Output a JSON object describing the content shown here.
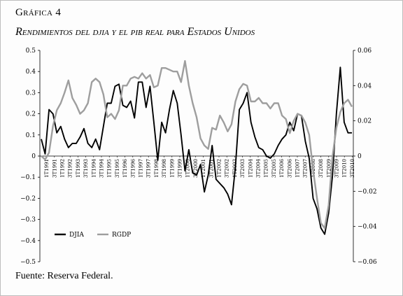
{
  "figure": {
    "heading": "Gráfica 4",
    "subtitle": "Rendimientos del djia y el pib real para Estados Unidos",
    "footer": "Fuente: Reserva Federal."
  },
  "chart_data": {
    "type": "line",
    "title": "Rendimientos del djia y el pib real para Estados Unidos",
    "xlabel": "",
    "ylabel": "",
    "y_left": {
      "min": -0.5,
      "max": 0.5,
      "ticks": [
        "0.5",
        "0.4",
        "0.3",
        "0.2",
        "0.1",
        "0",
        "−0.1",
        "−0.2",
        "−0.3",
        "−0.4",
        "−0.5"
      ]
    },
    "y_right": {
      "min": -0.06,
      "max": 0.06,
      "ticks": [
        "0.06",
        "0.04",
        "0.02",
        "0",
        "−0.02",
        "−0.04",
        "−0.06"
      ]
    },
    "x_tick_labels": [
      "1T1991",
      "3T1991",
      "1T1992",
      "3T1992",
      "1T1993",
      "3T1993",
      "1T1994",
      "3T1994",
      "1T1995",
      "3T1995",
      "1T1996",
      "3T1996",
      "1T1997",
      "3T1997",
      "1T1998",
      "3T1998",
      "1T1999",
      "3T1999",
      "1T2000",
      "3T2000",
      "1T2001",
      "3T2001",
      "1T2002",
      "3T2002",
      "1T2003",
      "3T2003",
      "1T2004",
      "3T2004",
      "1T2005",
      "3T2005",
      "1T2006",
      "3T2006",
      "1T2007",
      "3T2007",
      "1T2008",
      "3T2008",
      "1T2009",
      "3T2009",
      "1T2010",
      "3T2010"
    ],
    "legend_placement": "bottom-left",
    "grid": false,
    "series": [
      {
        "name": "DJIA",
        "color": "#000000",
        "axis": "left",
        "values": [
          0.08,
          0.01,
          0.22,
          0.2,
          0.11,
          0.14,
          0.08,
          0.04,
          0.06,
          0.06,
          0.09,
          0.13,
          0.06,
          0.04,
          0.08,
          0.03,
          0.14,
          0.25,
          0.25,
          0.33,
          0.34,
          0.24,
          0.23,
          0.26,
          0.18,
          0.35,
          0.35,
          0.23,
          0.33,
          0.16,
          -0.02,
          0.16,
          0.11,
          0.22,
          0.31,
          0.25,
          0.1,
          -0.07,
          0.03,
          -0.08,
          -0.09,
          -0.04,
          -0.17,
          -0.09,
          0.05,
          -0.11,
          -0.13,
          -0.15,
          -0.18,
          -0.23,
          -0.05,
          0.22,
          0.25,
          0.3,
          0.16,
          0.09,
          0.04,
          0.03,
          0.0,
          -0.01,
          0.01,
          0.05,
          0.08,
          0.1,
          0.16,
          0.12,
          0.2,
          0.19,
          0.07,
          -0.01,
          -0.2,
          -0.25,
          -0.34,
          -0.37,
          -0.27,
          -0.09,
          0.2,
          0.42,
          0.16,
          0.11,
          0.11
        ]
      },
      {
        "name": "RGDP",
        "color": "#9e9e9e",
        "axis": "right",
        "values": [
          0.0,
          -0.002,
          0.002,
          0.017,
          0.026,
          0.03,
          0.036,
          0.043,
          0.033,
          0.029,
          0.024,
          0.026,
          0.03,
          0.042,
          0.044,
          0.042,
          0.035,
          0.022,
          0.024,
          0.021,
          0.026,
          0.04,
          0.04,
          0.044,
          0.045,
          0.044,
          0.047,
          0.044,
          0.046,
          0.039,
          0.04,
          0.05,
          0.05,
          0.049,
          0.048,
          0.048,
          0.042,
          0.054,
          0.04,
          0.03,
          0.022,
          0.01,
          0.006,
          0.004,
          0.016,
          0.015,
          0.023,
          0.019,
          0.014,
          0.018,
          0.031,
          0.038,
          0.041,
          0.04,
          0.031,
          0.031,
          0.033,
          0.03,
          0.03,
          0.027,
          0.03,
          0.03,
          0.023,
          0.021,
          0.013,
          0.02,
          0.024,
          0.023,
          0.019,
          0.012,
          -0.008,
          -0.024,
          -0.038,
          -0.041,
          -0.028,
          0.0,
          0.016,
          0.025,
          0.03,
          0.032,
          0.028
        ]
      }
    ]
  }
}
